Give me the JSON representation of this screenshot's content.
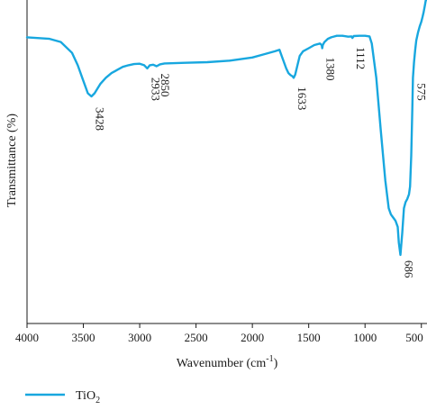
{
  "chart_data": {
    "type": "line",
    "xlabel": "Wavenumber (cm",
    "xlabel_sup": "-1",
    "xlabel_end": ")",
    "ylabel": "Transmittance (%)",
    "xlim": [
      4000,
      450
    ],
    "x_reversed": true,
    "ylim": [
      0,
      100
    ],
    "x_ticks": [
      4000,
      3500,
      3000,
      2500,
      2000,
      1500,
      1000,
      500
    ],
    "x_tick_labels": [
      "4000",
      "3500",
      "3000",
      "2500",
      "2000",
      "1500",
      "1000",
      "500"
    ],
    "y_ticks_shown": false,
    "grid": false,
    "legend_position": "bottom-left",
    "series": [
      {
        "name": "TiO2",
        "name_display": "TiO",
        "name_sub": "2",
        "color": "#18a7df",
        "x": [
          4000,
          3800,
          3700,
          3600,
          3550,
          3500,
          3460,
          3428,
          3400,
          3350,
          3300,
          3250,
          3200,
          3150,
          3100,
          3050,
          3000,
          2960,
          2933,
          2910,
          2880,
          2850,
          2820,
          2780,
          2600,
          2400,
          2200,
          2000,
          1900,
          1800,
          1760,
          1740,
          1720,
          1700,
          1680,
          1660,
          1645,
          1633,
          1620,
          1600,
          1580,
          1550,
          1500,
          1450,
          1400,
          1385,
          1380,
          1375,
          1360,
          1330,
          1300,
          1270,
          1250,
          1200,
          1150,
          1120,
          1112,
          1100,
          1050,
          1000,
          960,
          940,
          900,
          860,
          820,
          790,
          770,
          750,
          730,
          710,
          700,
          686,
          670,
          655,
          640,
          625,
          610,
          600,
          590,
          580,
          575,
          565,
          555,
          545,
          530,
          515,
          500,
          490,
          480,
          470,
          460,
          455
        ],
        "y": [
          88,
          87.5,
          86.5,
          83,
          79,
          74,
          70,
          69,
          70,
          73,
          75,
          76.5,
          77.5,
          78.5,
          79,
          79.4,
          79.5,
          79,
          78,
          79,
          79.2,
          78.7,
          79.3,
          79.6,
          79.8,
          80,
          80.5,
          81.5,
          82.5,
          83.5,
          84,
          82,
          80,
          78,
          76.5,
          75.8,
          75.5,
          75,
          76,
          79,
          82,
          83.5,
          84.5,
          85.5,
          86,
          85.5,
          84.5,
          85.5,
          86.5,
          87.5,
          88,
          88.3,
          88.5,
          88.5,
          88.2,
          88.3,
          87.8,
          88.4,
          88.5,
          88.5,
          88.3,
          86,
          75,
          58,
          42,
          33,
          31,
          30,
          29,
          27,
          22,
          18,
          25,
          33,
          35,
          36,
          37.5,
          40,
          50,
          65,
          75,
          80,
          84,
          87,
          89.5,
          91.5,
          93,
          94.5,
          96,
          98,
          100,
          100
        ]
      }
    ],
    "annotations": [
      {
        "text": "3428",
        "x": 3428
      },
      {
        "text": "2933",
        "x": 2933
      },
      {
        "text": "2850",
        "x": 2850
      },
      {
        "text": "1633",
        "x": 1633
      },
      {
        "text": "1380",
        "x": 1380
      },
      {
        "text": "1112",
        "x": 1112
      },
      {
        "text": "686",
        "x": 686
      },
      {
        "text": "575",
        "x": 575
      }
    ]
  }
}
